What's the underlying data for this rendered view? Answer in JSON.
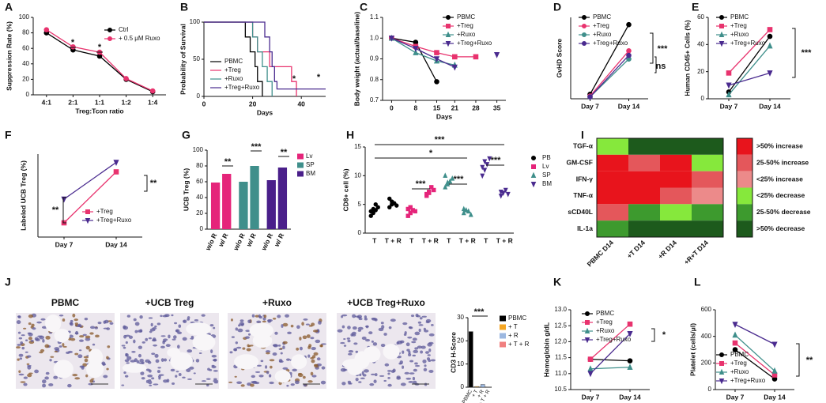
{
  "chart_data": [
    {
      "panel": "A",
      "type": "line",
      "categories": [
        "4:1",
        "2:1",
        "1:1",
        "1:2",
        "1:4"
      ],
      "xlabel": "Treg:Tcon ratio",
      "ylabel": "Suppression Rate (%)",
      "ylim": [
        0,
        100
      ],
      "yticks": [
        0,
        20,
        40,
        60,
        80,
        100
      ],
      "series": [
        {
          "name": "Ctrl",
          "color": "#000000",
          "marker": "circle",
          "values": [
            80,
            58,
            50,
            20,
            4
          ]
        },
        {
          "name": "+ 0.5 μM Ruxo",
          "color": "#e8336e",
          "marker": "circle",
          "values": [
            84,
            62,
            55,
            21,
            5
          ]
        }
      ],
      "annotations": [
        "*",
        "*"
      ]
    },
    {
      "panel": "B",
      "type": "step",
      "xlabel": "Days",
      "ylabel": "Probability of Survival",
      "xlim": [
        0,
        50
      ],
      "xticks": [
        0,
        20,
        40
      ],
      "ylim": [
        0,
        100
      ],
      "yticks": [
        0,
        50,
        100
      ],
      "series": [
        {
          "name": "PBMC",
          "color": "#000000",
          "x": [
            0,
            17,
            19,
            21,
            22,
            24
          ],
          "values": [
            100,
            80,
            60,
            40,
            20,
            0
          ]
        },
        {
          "name": "+Treg",
          "color": "#e8336e",
          "x": [
            0,
            20,
            22,
            27,
            36,
            38
          ],
          "values": [
            100,
            80,
            60,
            40,
            20,
            0
          ]
        },
        {
          "name": "+Ruxo",
          "color": "#3f8f8b",
          "x": [
            0,
            20,
            22,
            24,
            26,
            28
          ],
          "values": [
            100,
            80,
            60,
            40,
            20,
            0
          ]
        },
        {
          "name": "+Treg+Ruxo",
          "color": "#4a2b8f",
          "x": [
            0,
            25,
            27,
            28,
            29,
            30,
            50
          ],
          "values": [
            100,
            80,
            60,
            40,
            20,
            10,
            10
          ]
        }
      ],
      "annotations": [
        "*",
        "*"
      ]
    },
    {
      "panel": "C",
      "type": "line",
      "x": [
        0,
        8,
        15,
        21,
        28,
        35
      ],
      "xlim": [
        -3,
        38
      ],
      "xticks": [
        0,
        8,
        15,
        21,
        28,
        35
      ],
      "xlabel": "Days",
      "ylabel": "Body weight (actual/baseline)",
      "ylim": [
        0.7,
        1.1
      ],
      "yticks": [
        0.7,
        0.8,
        0.9,
        {
          "value": 1.0,
          "label": "1.0"
        },
        1.1
      ],
      "series": [
        {
          "name": "PBMC",
          "color": "#000000",
          "marker": "circle",
          "values": [
            1.0,
            0.98,
            0.79,
            null,
            null,
            null
          ]
        },
        {
          "name": "+Treg",
          "color": "#e8336e",
          "marker": "square",
          "values": [
            1.0,
            0.96,
            0.93,
            0.91,
            0.91,
            null
          ]
        },
        {
          "name": "+Ruxo",
          "color": "#3f8f8b",
          "marker": "triangle",
          "values": [
            1.0,
            0.93,
            0.89,
            0.87,
            null,
            null
          ]
        },
        {
          "name": "+Treg+Ruxo",
          "color": "#4a2b8f",
          "marker": "triangle-down",
          "values": [
            1.0,
            0.95,
            0.9,
            0.86,
            null,
            0.92
          ]
        }
      ],
      "annotations": []
    },
    {
      "panel": "D",
      "type": "line",
      "categories": [
        "Day 7",
        "Day 14"
      ],
      "ylabel": "GvHD Score",
      "ylim": [
        0,
        9
      ],
      "series": [
        {
          "name": "PBMC",
          "color": "#000000",
          "marker": "circle",
          "values": [
            0.5,
            8.2
          ]
        },
        {
          "name": "+Treg",
          "color": "#e8336e",
          "marker": "circle",
          "values": [
            0.3,
            5.3
          ]
        },
        {
          "name": "+Ruxo",
          "color": "#3f8f8b",
          "marker": "circle",
          "values": [
            0.2,
            4.4
          ]
        },
        {
          "name": "+Treg+Ruxo",
          "color": "#4a2b8f",
          "marker": "circle",
          "values": [
            0.2,
            4.8
          ]
        }
      ],
      "annotations": [
        "***",
        "ns"
      ]
    },
    {
      "panel": "E",
      "type": "line",
      "categories": [
        "Day 7",
        "Day 14"
      ],
      "ylabel": "Human CD45+ Cells (%)",
      "ylim": [
        0,
        60
      ],
      "yticks": [
        0,
        20,
        40,
        60
      ],
      "series": [
        {
          "name": "PBMC",
          "color": "#000000",
          "marker": "circle",
          "values": [
            5,
            46
          ]
        },
        {
          "name": "+Treg",
          "color": "#e8336e",
          "marker": "square",
          "values": [
            19,
            51
          ]
        },
        {
          "name": "+Ruxo",
          "color": "#3f8f8b",
          "marker": "triangle",
          "values": [
            3,
            39
          ]
        },
        {
          "name": "+Treg+Ruxo",
          "color": "#4a2b8f",
          "marker": "triangle-down",
          "values": [
            10,
            19
          ]
        }
      ],
      "annotations": [
        "***"
      ]
    },
    {
      "panel": "F",
      "type": "line",
      "categories": [
        "Day 7",
        "Day 14"
      ],
      "ylabel": "Labeled UCB Treg (%)",
      "ylim": [
        0,
        70
      ],
      "series": [
        {
          "name": "+Treg",
          "color": "#e8336e",
          "marker": "square",
          "values": [
            12,
            55
          ]
        },
        {
          "name": "+Treg+Ruxo",
          "color": "#4a2b8f",
          "marker": "triangle-down",
          "values": [
            32,
            63
          ]
        }
      ],
      "annotations": [
        "**",
        "**"
      ]
    },
    {
      "panel": "G",
      "type": "grouped-bar",
      "categories": [
        "w/o R",
        "w/ R"
      ],
      "ylabel": "UCB Treg (%)",
      "ylim": [
        0,
        100
      ],
      "yticks": [
        0,
        20,
        40,
        60,
        80,
        100
      ],
      "series": [
        {
          "name": "Lv",
          "color": "#e5247a",
          "values": [
            59,
            70
          ]
        },
        {
          "name": "SP",
          "color": "#3f8f8b",
          "values": [
            60,
            80
          ]
        },
        {
          "name": "BM",
          "color": "#4a1f8a",
          "values": [
            62,
            78
          ]
        }
      ],
      "annotations": [
        "**",
        "***",
        "**"
      ]
    },
    {
      "panel": "H",
      "type": "dot",
      "categories": [
        "T",
        "T + R"
      ],
      "ylabel": "CD8+ cell (%)",
      "ylim": [
        0,
        15
      ],
      "yticks": [
        0,
        5,
        10,
        15
      ],
      "series": [
        {
          "name": "PB",
          "color": "#000000",
          "marker": "circle",
          "values": [
            [
              3,
              3.5,
              4,
              4.5,
              3.8,
              4.2,
              5
            ],
            [
              4.5,
              5,
              5.2,
              4.8,
              6,
              5.5
            ]
          ]
        },
        {
          "name": "Lv",
          "color": "#e5247a",
          "marker": "square",
          "values": [
            [
              3,
              3.5,
              4,
              3.8,
              4.2,
              4.5
            ],
            [
              6.5,
              7,
              8,
              7.5,
              6.8,
              7.2
            ]
          ]
        },
        {
          "name": "SP",
          "color": "#3f8f8b",
          "marker": "triangle",
          "values": [
            [
              8,
              8.5,
              9,
              9.5,
              10,
              8.8
            ],
            [
              3.5,
              4,
              3.8,
              3.2,
              4.2
            ]
          ]
        },
        {
          "name": "BM",
          "color": "#4a2b8f",
          "marker": "triangle-down",
          "values": [
            [
              10,
              11,
              12,
              13,
              11.5,
              12.5
            ],
            [
              6.5,
              7,
              7.5,
              6.8,
              7.2
            ]
          ]
        }
      ],
      "annotations": [
        "***",
        "*",
        "***",
        "***",
        "***"
      ]
    },
    {
      "panel": "I",
      "type": "heatmap",
      "rows": [
        "TGF-α",
        "GM-CSF",
        "IFN-γ",
        "TNF-α",
        "sCD40L",
        "IL-1a"
      ],
      "columns": [
        "PBMC D14",
        "+T D14",
        "+R D14",
        "+R+T D14"
      ],
      "levels": [
        {
          "label": ">50% increase",
          "color": "#e8141c"
        },
        {
          "label": "25-50% increase",
          "color": "#e4575b"
        },
        {
          "label": "<25% increase",
          "color": "#ec8a8a"
        },
        {
          "label": "<25% decrease",
          "color": "#86e83c"
        },
        {
          "label": "25-50% decrease",
          "color": "#3d9a2e"
        },
        {
          "label": ">50% decrease",
          "color": "#1d5a1c"
        }
      ],
      "values": [
        [
          "<25% decrease",
          ">50% decrease",
          ">50% decrease",
          ">50% decrease"
        ],
        [
          ">50% increase",
          "25-50% increase",
          ">50% increase",
          "<25% decrease"
        ],
        [
          ">50% increase",
          ">50% increase",
          ">50% increase",
          "25-50% increase"
        ],
        [
          ">50% increase",
          ">50% increase",
          "25-50% increase",
          "<25% increase"
        ],
        [
          "25-50% increase",
          "25-50% decrease",
          "<25% decrease",
          "25-50% decrease"
        ],
        [
          "25-50% decrease",
          ">50% decrease",
          ">50% decrease",
          ">50% decrease"
        ]
      ]
    },
    {
      "panel": "J",
      "type": "bar",
      "image_labels": [
        "PBMC",
        "+UCB Treg",
        "+Ruxo",
        "+UCB Treg+Ruxo"
      ],
      "categories": [
        "PBMC",
        "+ T",
        "+ R",
        "+ T + R"
      ],
      "values": [
        24,
        0.3,
        1.2,
        0.1
      ],
      "colors": [
        "#000000",
        "#f5a623",
        "#9cb8e0",
        "#f08080"
      ],
      "ylabel": "CD3 H-Score",
      "ylim": [
        0,
        30
      ],
      "yticks": [
        0,
        10,
        20,
        30
      ],
      "annotations": [
        "***"
      ]
    },
    {
      "panel": "K",
      "type": "line",
      "categories": [
        "Day 7",
        "Day 14"
      ],
      "ylabel": "Hemoglobin g/dL",
      "ylim": [
        10.5,
        13.0
      ],
      "yticks": [
        10.5,
        {
          "value": 11.0,
          "label": "11.0"
        },
        11.5,
        {
          "value": 12.0,
          "label": "12.0"
        },
        12.5,
        {
          "value": 13.0,
          "label": "13.0"
        }
      ],
      "series": [
        {
          "name": "PBMC",
          "color": "#000000",
          "marker": "circle",
          "values": [
            11.45,
            11.4
          ]
        },
        {
          "name": "+Treg",
          "color": "#e8336e",
          "marker": "square",
          "values": [
            11.45,
            12.55
          ]
        },
        {
          "name": "+Ruxo",
          "color": "#3f8f8b",
          "marker": "triangle",
          "values": [
            11.15,
            11.2
          ]
        },
        {
          "name": "+Treg+Ruxo",
          "color": "#4a2b8f",
          "marker": "triangle-down",
          "values": [
            11.0,
            12.25
          ]
        }
      ],
      "annotations": [
        "*"
      ]
    },
    {
      "panel": "L",
      "type": "line",
      "categories": [
        "Day 7",
        "Day 14"
      ],
      "ylabel": "Platelet (cells/μl)",
      "ylim": [
        0,
        600
      ],
      "yticks": [
        0,
        200,
        400,
        600
      ],
      "series": [
        {
          "name": "PBMC",
          "color": "#000000",
          "marker": "circle",
          "values": [
            300,
            80
          ]
        },
        {
          "name": "+Treg",
          "color": "#e8336e",
          "marker": "square",
          "values": [
            350,
            110
          ]
        },
        {
          "name": "+Ruxo",
          "color": "#3f8f8b",
          "marker": "triangle",
          "values": [
            410,
            140
          ]
        },
        {
          "name": "+Treg+Ruxo",
          "color": "#4a2b8f",
          "marker": "triangle-down",
          "values": [
            490,
            340
          ]
        }
      ],
      "annotations": [
        "**"
      ]
    }
  ]
}
